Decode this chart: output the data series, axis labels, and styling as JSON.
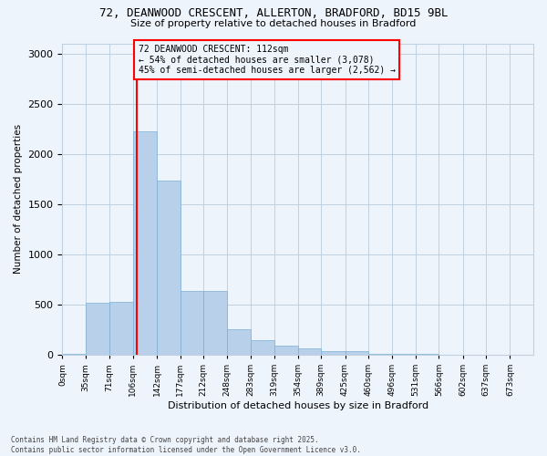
{
  "title_line1": "72, DEANWOOD CRESCENT, ALLERTON, BRADFORD, BD15 9BL",
  "title_line2": "Size of property relative to detached houses in Bradford",
  "xlabel": "Distribution of detached houses by size in Bradford",
  "ylabel": "Number of detached properties",
  "bar_color": "#b8d0ea",
  "bar_edge_color": "#7aafd4",
  "vline_x": 112,
  "vline_color": "red",
  "annotation_text": "72 DEANWOOD CRESCENT: 112sqm\n← 54% of detached houses are smaller (3,078)\n45% of semi-detached houses are larger (2,562) →",
  "annotation_box_color": "red",
  "bin_edges": [
    0,
    35,
    71,
    106,
    142,
    177,
    212,
    248,
    283,
    319,
    354,
    389,
    425,
    460,
    496,
    531,
    566,
    602,
    637,
    673,
    708
  ],
  "bar_heights": [
    5,
    520,
    525,
    2220,
    1730,
    640,
    640,
    255,
    145,
    95,
    65,
    40,
    40,
    10,
    5,
    5,
    0,
    0,
    0,
    0
  ],
  "ylim": [
    0,
    3100
  ],
  "yticks": [
    0,
    500,
    1000,
    1500,
    2000,
    2500,
    3000
  ],
  "footnote": "Contains HM Land Registry data © Crown copyright and database right 2025.\nContains public sector information licensed under the Open Government Licence v3.0.",
  "background_color": "#eef4fc",
  "grid_color": "#c0d0e0",
  "fig_width": 6.0,
  "fig_height": 5.0
}
